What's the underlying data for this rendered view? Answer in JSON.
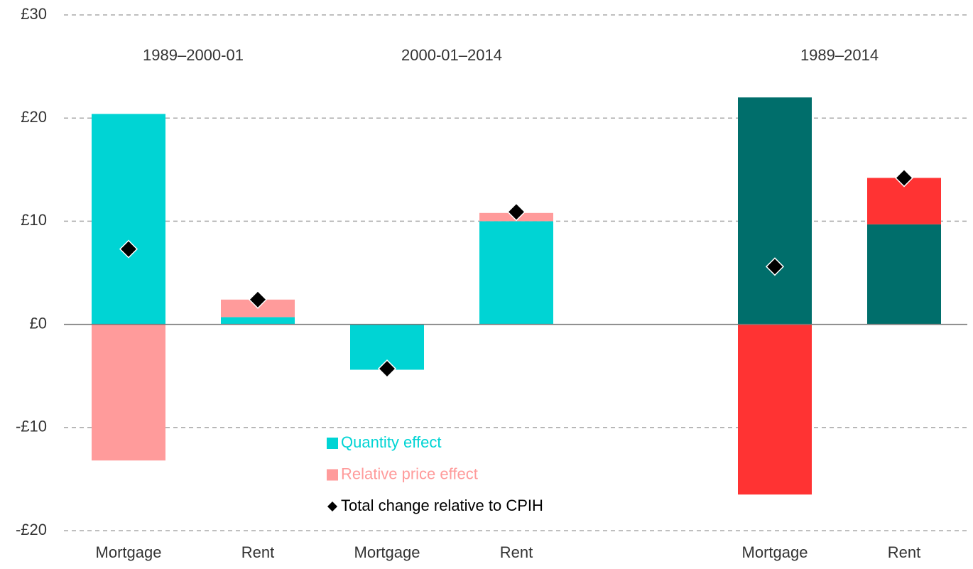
{
  "chart_data": {
    "type": "bar",
    "stacked": true,
    "categories": [
      "Mortgage",
      "Rent",
      "Mortgage",
      "Rent",
      null,
      "Mortgage",
      "Rent"
    ],
    "groups": [
      "1989–2000-01",
      "2000-01–2014",
      "1989–2014"
    ],
    "series": [
      {
        "name": "Quantity effect",
        "color": "#00d4d4",
        "colors": [
          "#00d4d4",
          "#00d4d4",
          "#00d4d4",
          "#00d4d4",
          null,
          "#006e6b",
          "#006e6b"
        ],
        "values": [
          20.4,
          0.7,
          -4.4,
          10.0,
          null,
          22.0,
          9.7
        ]
      },
      {
        "name": "Relative price effect",
        "color": "#ff9b9b",
        "colors": [
          "#ff9b9b",
          "#ff9b9b",
          "#ff9b9b",
          "#ff9b9b",
          null,
          "#ff3333",
          "#ff3333"
        ],
        "values": [
          -13.2,
          1.7,
          0,
          0.8,
          null,
          -16.5,
          4.5
        ]
      },
      {
        "name": "Total change relative to CPIH",
        "color": "#000000",
        "marker": "diamond",
        "values": [
          7.3,
          2.4,
          -4.3,
          10.9,
          null,
          5.6,
          14.2
        ]
      }
    ],
    "ylim": [
      -20,
      30
    ],
    "yticks": [
      {
        "value": -20,
        "label": "-£20"
      },
      {
        "value": -10,
        "label": "-£10"
      },
      {
        "value": 0,
        "label": "£0"
      },
      {
        "value": 10,
        "label": "£10"
      },
      {
        "value": 20,
        "label": "£20"
      },
      {
        "value": 30,
        "label": "£30"
      }
    ],
    "grid": true,
    "legend": "bottom-center"
  }
}
